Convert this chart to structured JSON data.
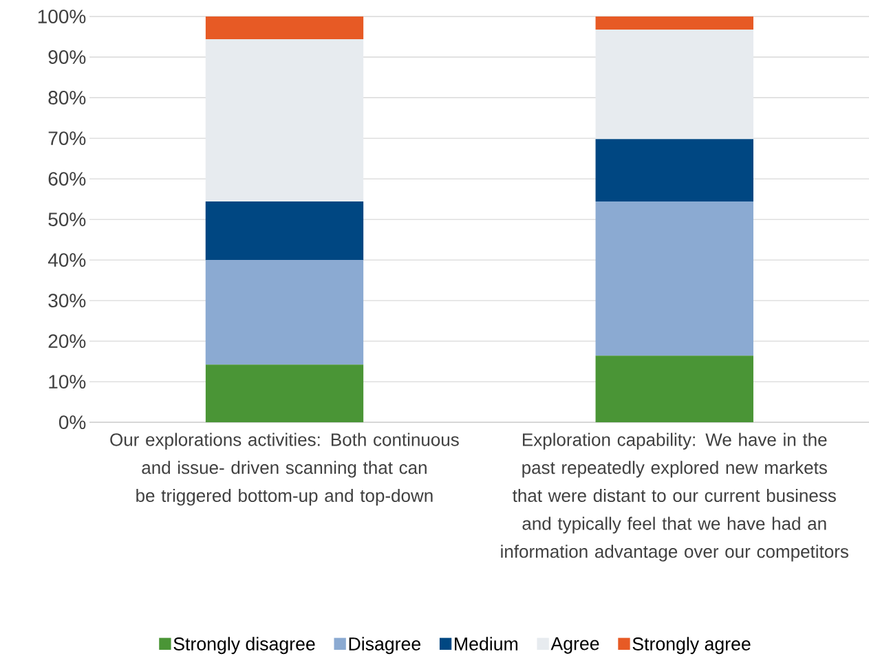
{
  "chart_data": {
    "type": "bar",
    "stacked": true,
    "categories": [
      "Our explorations activities: Both continuous and issue- driven scanning that can be triggered bottom-up and top-down",
      "Exploration capability: We have in the past repeatedly explored new markets that were distant to our current business and typically feel that we have had an information advantage over our competitors"
    ],
    "series": [
      {
        "name": "Strongly disagree",
        "color": "#4a9536",
        "values": [
          14.2,
          16.4
        ]
      },
      {
        "name": "Disagree",
        "color": "#8baad2",
        "values": [
          25.8,
          38.0
        ]
      },
      {
        "name": "Medium",
        "color": "#004782",
        "values": [
          14.4,
          15.4
        ]
      },
      {
        "name": "Agree",
        "color": "#e7ebef",
        "values": [
          40.0,
          27.0
        ]
      },
      {
        "name": "Strongly agree",
        "color": "#e75a25",
        "values": [
          5.6,
          3.2
        ]
      }
    ],
    "ylim": [
      0,
      100
    ],
    "yticks": [
      {
        "value": 0,
        "label": "0%"
      },
      {
        "value": 10,
        "label": "10%"
      },
      {
        "value": 20,
        "label": "20%"
      },
      {
        "value": 30,
        "label": "30%"
      },
      {
        "value": 40,
        "label": "40%"
      },
      {
        "value": 50,
        "label": "50%"
      },
      {
        "value": 60,
        "label": "60%"
      },
      {
        "value": 70,
        "label": "70%"
      },
      {
        "value": 80,
        "label": "80%"
      },
      {
        "value": 90,
        "label": "90%"
      },
      {
        "value": 100,
        "label": "100%"
      }
    ],
    "grid": "y",
    "legend": "bottom"
  }
}
